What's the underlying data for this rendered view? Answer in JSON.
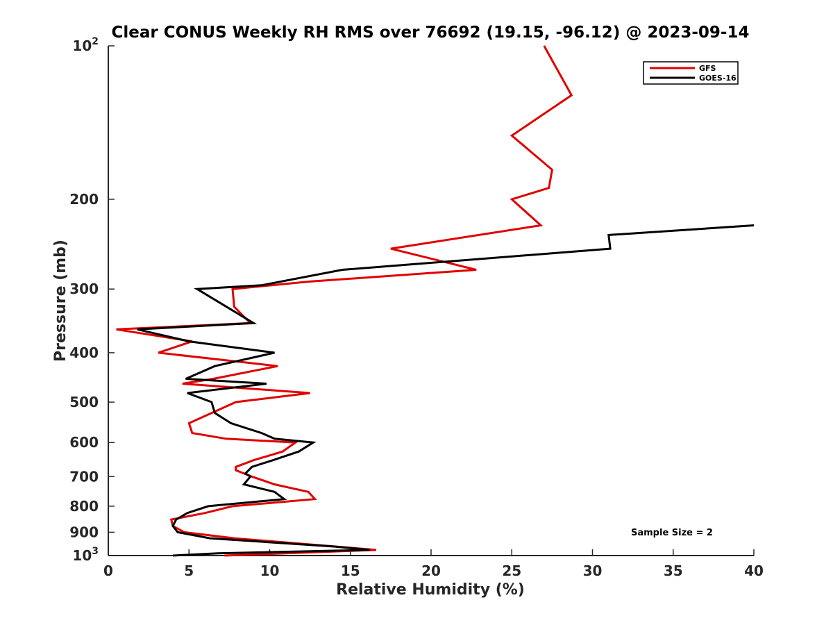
{
  "chart_data": {
    "type": "line",
    "title": "Clear CONUS Weekly RH RMS over 76692 (19.15, -96.12) @ 2023-09-14",
    "xlabel": "Relative Humidity (%)",
    "ylabel": "Pressure (mb)",
    "xlim": [
      0,
      40
    ],
    "ylim": [
      100,
      1000
    ],
    "yscale": "log",
    "y_reversed": true,
    "x_ticks": [
      0,
      5,
      10,
      15,
      20,
      25,
      30,
      35,
      40
    ],
    "y_ticks": [
      {
        "value": 100,
        "label": "10",
        "sup": "2"
      },
      {
        "value": 200,
        "label": "200"
      },
      {
        "value": 300,
        "label": "300"
      },
      {
        "value": 400,
        "label": "400"
      },
      {
        "value": 500,
        "label": "500"
      },
      {
        "value": 600,
        "label": "600"
      },
      {
        "value": 700,
        "label": "700"
      },
      {
        "value": 800,
        "label": "800"
      },
      {
        "value": 900,
        "label": "900"
      },
      {
        "value": 1000,
        "label": "10",
        "sup": "3"
      }
    ],
    "legend_position": "top-right",
    "annotation": "Sample Size = 2",
    "series": [
      {
        "name": "GFS",
        "color": "#e00000",
        "points": [
          [
            27.0,
            100
          ],
          [
            28.7,
            125
          ],
          [
            25.0,
            150
          ],
          [
            27.5,
            175
          ],
          [
            27.3,
            190
          ],
          [
            25.0,
            200
          ],
          [
            26.8,
            225
          ],
          [
            17.5,
            250
          ],
          [
            22.8,
            275
          ],
          [
            12.5,
            290
          ],
          [
            7.7,
            300
          ],
          [
            7.8,
            325
          ],
          [
            8.8,
            350
          ],
          [
            0.5,
            360
          ],
          [
            5.2,
            380
          ],
          [
            3.1,
            400
          ],
          [
            10.5,
            425
          ],
          [
            6.5,
            450
          ],
          [
            4.6,
            460
          ],
          [
            12.5,
            480
          ],
          [
            7.9,
            500
          ],
          [
            5.0,
            550
          ],
          [
            5.2,
            575
          ],
          [
            7.3,
            590
          ],
          [
            11.6,
            600
          ],
          [
            10.8,
            625
          ],
          [
            9.0,
            650
          ],
          [
            7.9,
            670
          ],
          [
            7.9,
            680
          ],
          [
            8.9,
            700
          ],
          [
            10.3,
            725
          ],
          [
            12.4,
            750
          ],
          [
            12.8,
            775
          ],
          [
            7.7,
            800
          ],
          [
            6.0,
            825
          ],
          [
            3.9,
            850
          ],
          [
            4.0,
            875
          ],
          [
            4.7,
            900
          ],
          [
            7.8,
            925
          ],
          [
            16.6,
            975
          ],
          [
            7.2,
            1000
          ]
        ]
      },
      {
        "name": "GOES-16",
        "color": "#000000",
        "points": [
          [
            40.0,
            225
          ],
          [
            31.0,
            235
          ],
          [
            31.1,
            250
          ],
          [
            14.5,
            275
          ],
          [
            9.5,
            295
          ],
          [
            5.5,
            300
          ],
          [
            9.0,
            350
          ],
          [
            1.8,
            360
          ],
          [
            5.0,
            380
          ],
          [
            10.3,
            400
          ],
          [
            6.6,
            425
          ],
          [
            4.8,
            450
          ],
          [
            9.8,
            460
          ],
          [
            4.9,
            480
          ],
          [
            6.4,
            500
          ],
          [
            6.6,
            525
          ],
          [
            7.6,
            550
          ],
          [
            9.5,
            575
          ],
          [
            10.3,
            590
          ],
          [
            12.7,
            600
          ],
          [
            11.8,
            625
          ],
          [
            10.2,
            650
          ],
          [
            8.9,
            670
          ],
          [
            8.5,
            690
          ],
          [
            8.8,
            700
          ],
          [
            8.4,
            725
          ],
          [
            10.3,
            750
          ],
          [
            10.9,
            775
          ],
          [
            6.2,
            800
          ],
          [
            4.9,
            825
          ],
          [
            4.2,
            850
          ],
          [
            4.0,
            875
          ],
          [
            4.3,
            900
          ],
          [
            6.3,
            925
          ],
          [
            14.0,
            960
          ],
          [
            16.2,
            975
          ],
          [
            6.8,
            990
          ],
          [
            4.0,
            1000
          ]
        ]
      }
    ]
  }
}
